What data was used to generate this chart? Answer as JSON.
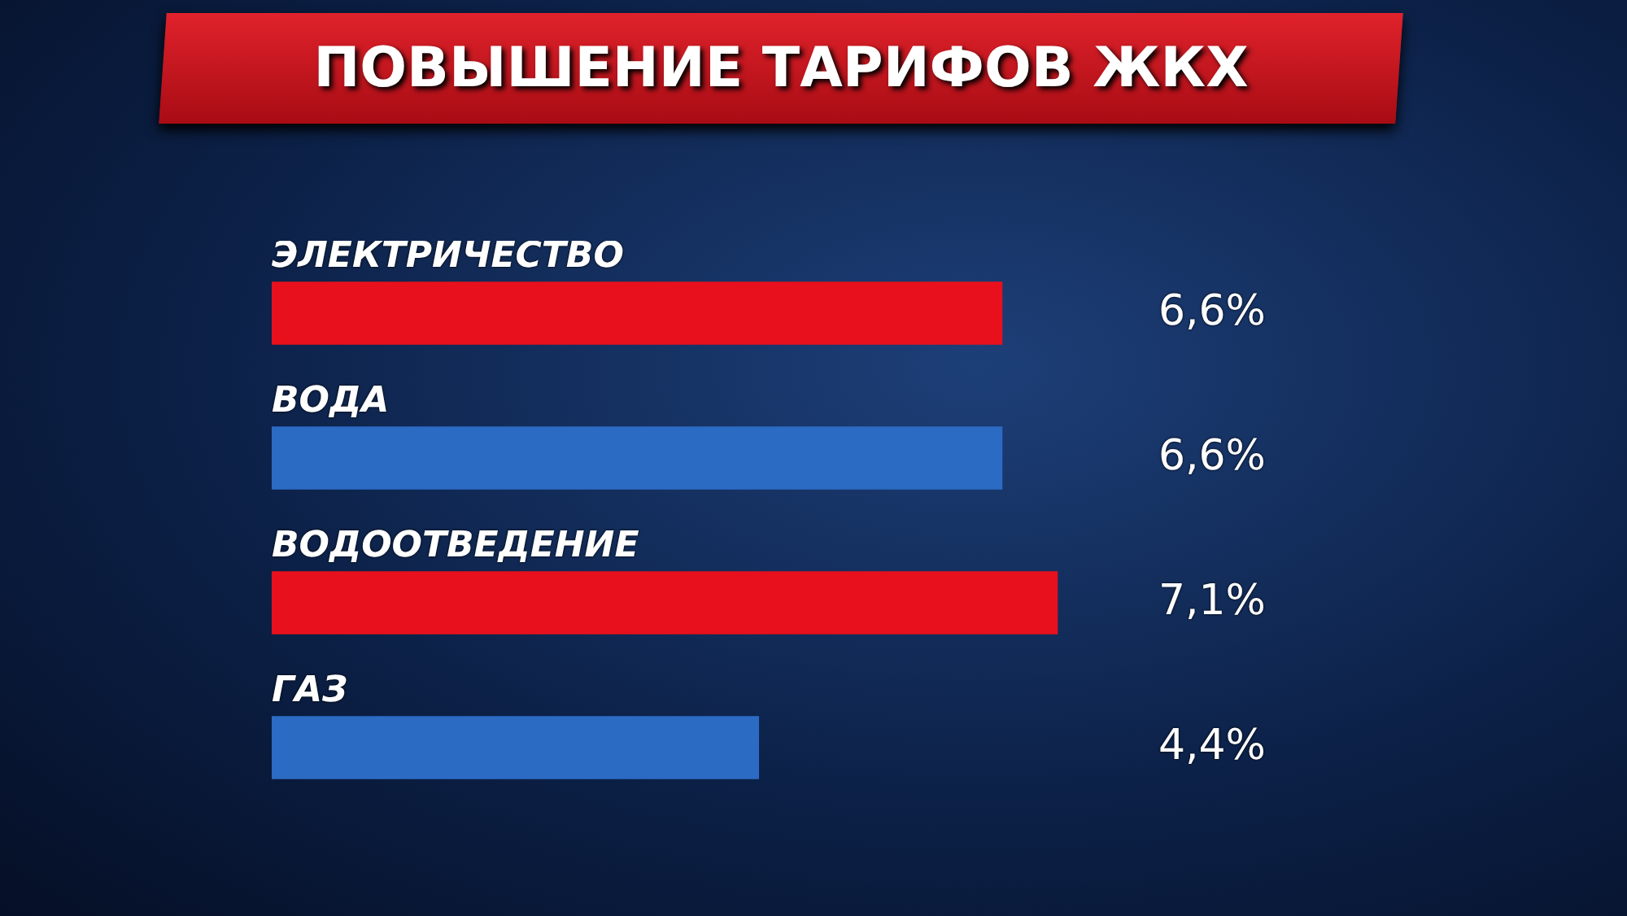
{
  "chart_data": {
    "type": "bar",
    "orientation": "horizontal",
    "title": "ПОВЫШЕНИЕ ТАРИФОВ ЖКХ",
    "categories": [
      "ЭЛЕКТРИЧЕСТВО",
      "ВОДА",
      "ВОДООТВЕДЕНИЕ",
      "ГАЗ"
    ],
    "values": [
      6.6,
      6.6,
      7.1,
      4.4
    ],
    "colors": [
      "#e8101c",
      "#2c6bc4",
      "#e8101c",
      "#2c6bc4"
    ],
    "value_labels": [
      "6,6%",
      "6,6%",
      "7,1%",
      "4,4%"
    ]
  }
}
